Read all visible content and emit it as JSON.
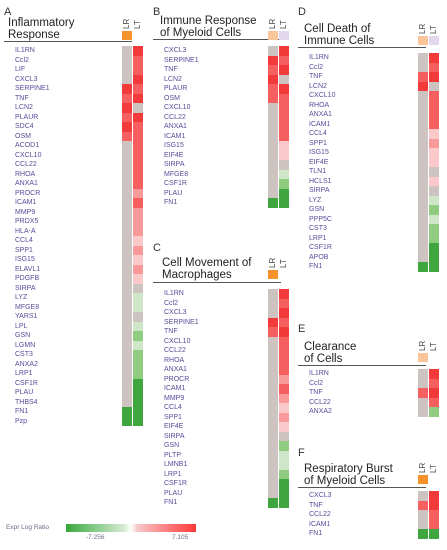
{
  "legend": {
    "title": "Expr Log Ratio",
    "min": "-7.256",
    "max": "7.105"
  },
  "colors": {
    "strong_red": "#f23a3a",
    "red": "#f65f5f",
    "mid_red": "#f89a9a",
    "light_red": "#fbc9c9",
    "grey": "#cdc3c0",
    "light_green": "#cfe6c8",
    "mid_green": "#8fcc7f",
    "green": "#3fa63f",
    "orange": "#f5922c",
    "peach": "#fbc59a",
    "lavender": "#e3d7ee"
  },
  "panels": [
    {
      "label": "A",
      "title": "Inflammatory\nResponse",
      "columns": [
        "LR",
        "LT"
      ],
      "header_colors": [
        "#f5922c",
        "#ffffff"
      ],
      "genes": [
        "IL1RN",
        "Ccl2",
        "LIF",
        "CXCL3",
        "SERPINE1",
        "TNF",
        "LCN2",
        "PLAUR",
        "SDC4",
        "OSM",
        "ACOD1",
        "CXCL10",
        "CCL22",
        "RHOA",
        "ANXA1",
        "PROCR",
        "ICAM1",
        "MMP9",
        "PRDX5",
        "HLA-A",
        "CCL4",
        "SPP1",
        "ISG15",
        "ELAVL1",
        "PDGFB",
        "SIRPA",
        "LYZ",
        "MFGE8",
        "YARS1",
        "LPL",
        "GSN",
        "LGMN",
        "CST3",
        "ANXA2",
        "LRP1",
        "CSF1R",
        "PLAU",
        "THBS4",
        "FN1",
        "Pzp"
      ],
      "cells": [
        [
          "grey",
          "strong_red"
        ],
        [
          "grey",
          "red"
        ],
        [
          "grey",
          "red"
        ],
        [
          "grey",
          "strong_red"
        ],
        [
          "strong_red",
          "red"
        ],
        [
          "red",
          "strong_red"
        ],
        [
          "strong_red",
          "grey"
        ],
        [
          "red",
          "strong_red"
        ],
        [
          "strong_red",
          "red"
        ],
        [
          "red",
          "red"
        ],
        [
          "grey",
          "red"
        ],
        [
          "grey",
          "red"
        ],
        [
          "grey",
          "red"
        ],
        [
          "grey",
          "red"
        ],
        [
          "grey",
          "red"
        ],
        [
          "grey",
          "mid_red"
        ],
        [
          "grey",
          "red"
        ],
        [
          "grey",
          "mid_red"
        ],
        [
          "grey",
          "mid_red"
        ],
        [
          "grey",
          "mid_red"
        ],
        [
          "grey",
          "light_red"
        ],
        [
          "grey",
          "mid_red"
        ],
        [
          "grey",
          "light_red"
        ],
        [
          "grey",
          "mid_red"
        ],
        [
          "grey",
          "light_red"
        ],
        [
          "grey",
          "grey"
        ],
        [
          "grey",
          "light_green"
        ],
        [
          "grey",
          "light_green"
        ],
        [
          "grey",
          "grey"
        ],
        [
          "grey",
          "light_green"
        ],
        [
          "grey",
          "mid_green"
        ],
        [
          "grey",
          "light_green"
        ],
        [
          "grey",
          "mid_green"
        ],
        [
          "grey",
          "mid_green"
        ],
        [
          "grey",
          "mid_green"
        ],
        [
          "grey",
          "green"
        ],
        [
          "grey",
          "green"
        ],
        [
          "grey",
          "green"
        ],
        [
          "green",
          "green"
        ],
        [
          "green",
          "green"
        ]
      ]
    },
    {
      "label": "B",
      "title": "Immune Response\nof Myeloid Cells",
      "columns": [
        "LR",
        "LT"
      ],
      "header_colors": [
        "#fbc59a",
        "#e3d7ee"
      ],
      "genes": [
        "CXCL3",
        "SERPINE1",
        "TNF",
        "LCN2",
        "PLAUR",
        "OSM",
        "CXCL10",
        "CCL22",
        "ANXA1",
        "ICAM1",
        "ISG15",
        "EIF4E",
        "SIRPA",
        "MFGE8",
        "CSF1R",
        "PLAU",
        "FN1"
      ],
      "cells": [
        [
          "grey",
          "strong_red"
        ],
        [
          "strong_red",
          "red"
        ],
        [
          "red",
          "strong_red"
        ],
        [
          "strong_red",
          "grey"
        ],
        [
          "red",
          "strong_red"
        ],
        [
          "red",
          "red"
        ],
        [
          "grey",
          "red"
        ],
        [
          "grey",
          "red"
        ],
        [
          "grey",
          "red"
        ],
        [
          "grey",
          "red"
        ],
        [
          "grey",
          "light_red"
        ],
        [
          "grey",
          "light_red"
        ],
        [
          "grey",
          "grey"
        ],
        [
          "grey",
          "light_green"
        ],
        [
          "grey",
          "mid_green"
        ],
        [
          "grey",
          "green"
        ],
        [
          "green",
          "green"
        ]
      ]
    },
    {
      "label": "C",
      "title": "Cell Movement of\nMacrophages",
      "columns": [
        "LR",
        "LT"
      ],
      "header_colors": [
        "#f5922c",
        "#ffffff"
      ],
      "genes": [
        "IL1RN",
        "Ccl2",
        "CXCL3",
        "SERPINE1",
        "TNF",
        "CXCL10",
        "CCL22",
        "RHOA",
        "ANXA1",
        "PROCR",
        "ICAM1",
        "MMP9",
        "CCL4",
        "SPP1",
        "EIF4E",
        "SIRPA",
        "GSN",
        "PLTP",
        "LMNB1",
        "LRP1",
        "CSF1R",
        "PLAU",
        "FN1"
      ],
      "cells": [
        [
          "grey",
          "strong_red"
        ],
        [
          "grey",
          "red"
        ],
        [
          "grey",
          "strong_red"
        ],
        [
          "strong_red",
          "red"
        ],
        [
          "red",
          "strong_red"
        ],
        [
          "grey",
          "red"
        ],
        [
          "grey",
          "red"
        ],
        [
          "grey",
          "red"
        ],
        [
          "grey",
          "red"
        ],
        [
          "grey",
          "mid_red"
        ],
        [
          "grey",
          "red"
        ],
        [
          "grey",
          "mid_red"
        ],
        [
          "grey",
          "light_red"
        ],
        [
          "grey",
          "mid_red"
        ],
        [
          "grey",
          "light_red"
        ],
        [
          "grey",
          "grey"
        ],
        [
          "grey",
          "mid_green"
        ],
        [
          "grey",
          "light_green"
        ],
        [
          "grey",
          "light_green"
        ],
        [
          "grey",
          "mid_green"
        ],
        [
          "grey",
          "green"
        ],
        [
          "grey",
          "green"
        ],
        [
          "green",
          "green"
        ]
      ]
    },
    {
      "label": "D",
      "title": "Cell Death of\nImmune Cells",
      "columns": [
        "LR",
        "LT"
      ],
      "header_colors": [
        "#fbc59a",
        "#e3d7ee"
      ],
      "genes": [
        "IL1RN",
        "Ccl2",
        "TNF",
        "LCN2",
        "CXCL10",
        "RHOA",
        "ANXA1",
        "ICAM1",
        "CCL4",
        "SPP1",
        "ISG15",
        "EIF4E",
        "TLN1",
        "HCLS1",
        "SIRPA",
        "LYZ",
        "GSN",
        "PPP5C",
        "CST3",
        "LRP1",
        "CSF1R",
        "APOB",
        "FN1"
      ],
      "cells": [
        [
          "grey",
          "strong_red"
        ],
        [
          "grey",
          "red"
        ],
        [
          "red",
          "strong_red"
        ],
        [
          "strong_red",
          "grey"
        ],
        [
          "grey",
          "red"
        ],
        [
          "grey",
          "red"
        ],
        [
          "grey",
          "red"
        ],
        [
          "grey",
          "red"
        ],
        [
          "grey",
          "light_red"
        ],
        [
          "grey",
          "mid_red"
        ],
        [
          "grey",
          "light_red"
        ],
        [
          "grey",
          "light_red"
        ],
        [
          "grey",
          "grey"
        ],
        [
          "grey",
          "light_red"
        ],
        [
          "grey",
          "grey"
        ],
        [
          "grey",
          "light_green"
        ],
        [
          "grey",
          "mid_green"
        ],
        [
          "grey",
          "light_green"
        ],
        [
          "grey",
          "mid_green"
        ],
        [
          "grey",
          "mid_green"
        ],
        [
          "grey",
          "green"
        ],
        [
          "grey",
          "green"
        ],
        [
          "green",
          "green"
        ]
      ]
    },
    {
      "label": "E",
      "title": "Clearance\nof Cells",
      "columns": [
        "LR",
        "LT"
      ],
      "header_colors": [
        "#fbc59a",
        "#ffffff"
      ],
      "genes": [
        "IL1RN",
        "Ccl2",
        "TNF",
        "CCL22",
        "ANXA2"
      ],
      "cells": [
        [
          "grey",
          "strong_red"
        ],
        [
          "grey",
          "red"
        ],
        [
          "red",
          "strong_red"
        ],
        [
          "grey",
          "red"
        ],
        [
          "grey",
          "mid_green"
        ]
      ]
    },
    {
      "label": "F",
      "title": "Respiratory Burst\nof Myeloid Cells",
      "columns": [
        "LR",
        "LT"
      ],
      "header_colors": [
        "#f5922c",
        "#ffffff"
      ],
      "genes": [
        "CXCL3",
        "TNF",
        "CCL22",
        "ICAM1",
        "FN1"
      ],
      "cells": [
        [
          "grey",
          "strong_red"
        ],
        [
          "red",
          "strong_red"
        ],
        [
          "grey",
          "red"
        ],
        [
          "grey",
          "red"
        ],
        [
          "green",
          "green"
        ]
      ]
    }
  ]
}
